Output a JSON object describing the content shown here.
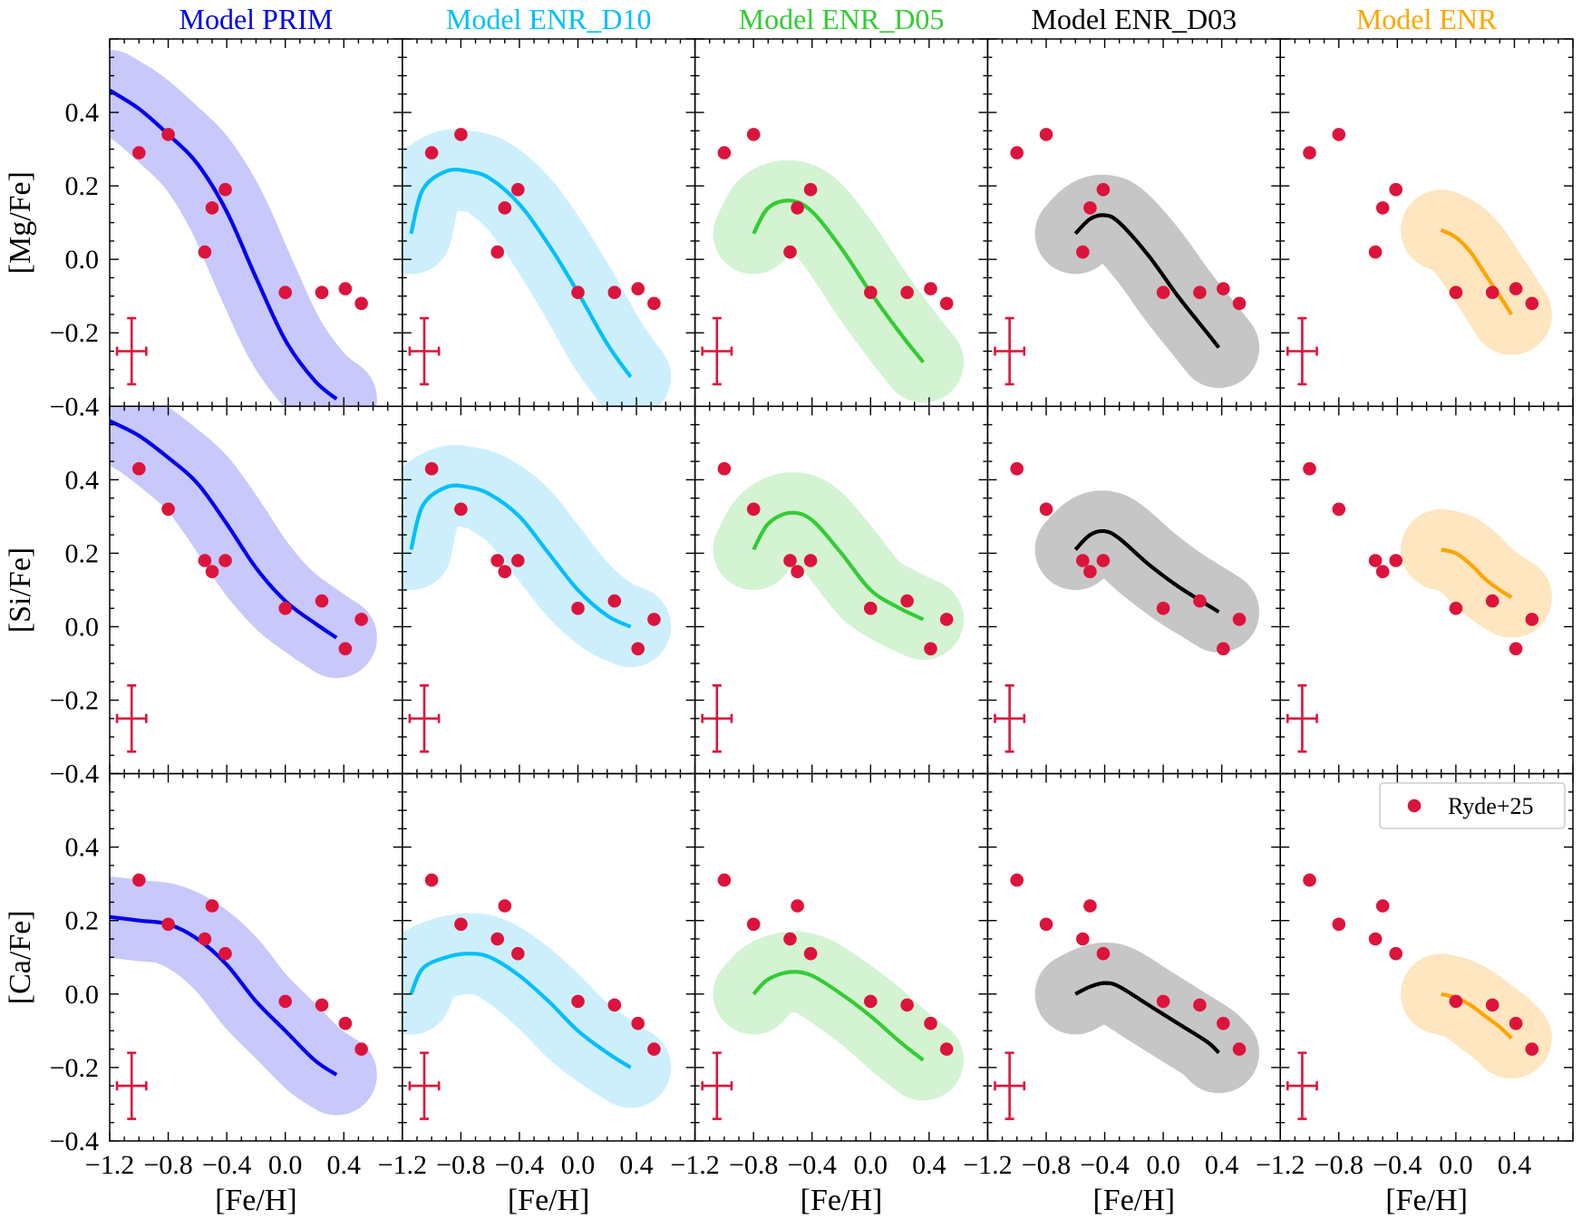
{
  "figure": {
    "x_label": "[Fe/H]",
    "row_labels": [
      "[Mg/Fe]",
      "[Si/Fe]",
      "[Ca/Fe]"
    ],
    "legend_label": "Ryde+25"
  },
  "chart_data": {
    "type": "scatter",
    "layout": "grid 3 rows x 5 columns, shared axes",
    "xlim": [
      -1.2,
      0.8
    ],
    "ylim": [
      -0.4,
      0.6
    ],
    "x_ticks": [
      -1.2,
      -0.8,
      -0.4,
      0.0,
      0.4
    ],
    "x_tick_labels": [
      "−1.2",
      "−0.8",
      "−0.4",
      "0.0",
      "0.4"
    ],
    "y_ticks": [
      -0.4,
      -0.2,
      0.0,
      0.2,
      0.4
    ],
    "y_tick_labels": [
      "−0.4",
      "−0.2",
      "0.0",
      "0.2",
      "0.4"
    ],
    "xlabel": "[Fe/H]",
    "row_ylabels": [
      "[Mg/Fe]",
      "[Si/Fe]",
      "[Ca/Fe]"
    ],
    "models": [
      {
        "name": "Model PRIM",
        "color": "#0000ee",
        "band_color": "#c8c8fa",
        "x_start": -1.2,
        "x_end": 0.35
      },
      {
        "name": "Model ENR_D10",
        "color": "#00bfff",
        "band_color": "#cdeffb",
        "x_start": -1.14,
        "x_end": 0.36
      },
      {
        "name": "Model ENR_D05",
        "color": "#33cc33",
        "band_color": "#d3f3d3",
        "x_start": -0.8,
        "x_end": 0.36
      },
      {
        "name": "Model ENR_D03",
        "color": "#000000",
        "band_color": "#c6c6c6",
        "x_start": -0.6,
        "x_end": 0.38
      },
      {
        "name": "Model ENR",
        "color": "#ffa500",
        "band_color": "#fde6c0",
        "x_start": -0.1,
        "x_end": 0.38
      }
    ],
    "band_halfwidth": 0.11,
    "observations": {
      "label": "Ryde+25",
      "color": "#dc143c",
      "x": [
        -1.0,
        -0.8,
        -0.55,
        -0.5,
        -0.41,
        0.0,
        0.25,
        0.41,
        0.52
      ],
      "rows": [
        {
          "element": "[Mg/Fe]",
          "y": [
            0.29,
            0.34,
            0.02,
            0.14,
            0.19,
            -0.09,
            -0.09,
            -0.08,
            -0.12
          ]
        },
        {
          "element": "[Si/Fe]",
          "y": [
            0.43,
            0.32,
            0.18,
            0.15,
            0.18,
            0.05,
            0.07,
            -0.06,
            0.02
          ]
        },
        {
          "element": "[Ca/Fe]",
          "y": [
            0.31,
            0.19,
            0.15,
            0.24,
            0.11,
            -0.02,
            -0.03,
            -0.08,
            -0.15
          ]
        }
      ],
      "error_bar": {
        "x": -1.05,
        "y": -0.25,
        "dx": 0.1,
        "dy": 0.09
      }
    },
    "tracks": [
      [
        {
          "x": [
            -1.2,
            -1.0,
            -0.8,
            -0.6,
            -0.4,
            -0.2,
            0.0,
            0.2,
            0.35
          ],
          "y": [
            0.46,
            0.41,
            0.34,
            0.26,
            0.13,
            -0.05,
            -0.22,
            -0.33,
            -0.38
          ]
        },
        {
          "x": [
            -1.14,
            -1.06,
            -0.9,
            -0.75,
            -0.6,
            -0.4,
            -0.2,
            0.0,
            0.2,
            0.36
          ],
          "y": [
            0.07,
            0.19,
            0.24,
            0.24,
            0.22,
            0.15,
            0.04,
            -0.09,
            -0.23,
            -0.32
          ]
        },
        {
          "x": [
            -0.8,
            -0.7,
            -0.55,
            -0.4,
            -0.2,
            0.0,
            0.2,
            0.36
          ],
          "y": [
            0.07,
            0.14,
            0.16,
            0.13,
            0.03,
            -0.09,
            -0.2,
            -0.28
          ]
        },
        {
          "x": [
            -0.6,
            -0.5,
            -0.4,
            -0.3,
            -0.1,
            0.1,
            0.3,
            0.38
          ],
          "y": [
            0.07,
            0.11,
            0.12,
            0.1,
            0.01,
            -0.1,
            -0.2,
            -0.24
          ]
        },
        {
          "x": [
            -0.1,
            0.0,
            0.1,
            0.2,
            0.3,
            0.38
          ],
          "y": [
            0.08,
            0.06,
            0.02,
            -0.04,
            -0.1,
            -0.15
          ]
        }
      ],
      [
        {
          "x": [
            -1.2,
            -1.0,
            -0.8,
            -0.6,
            -0.4,
            -0.2,
            0.0,
            0.2,
            0.35
          ],
          "y": [
            0.56,
            0.52,
            0.46,
            0.39,
            0.28,
            0.16,
            0.07,
            0.01,
            -0.03
          ]
        },
        {
          "x": [
            -1.14,
            -1.06,
            -0.9,
            -0.75,
            -0.6,
            -0.4,
            -0.2,
            0.0,
            0.2,
            0.36
          ],
          "y": [
            0.21,
            0.33,
            0.38,
            0.38,
            0.36,
            0.3,
            0.2,
            0.1,
            0.03,
            0.0
          ]
        },
        {
          "x": [
            -0.8,
            -0.7,
            -0.55,
            -0.4,
            -0.2,
            0.0,
            0.2,
            0.36
          ],
          "y": [
            0.21,
            0.28,
            0.31,
            0.29,
            0.2,
            0.1,
            0.05,
            0.02
          ]
        },
        {
          "x": [
            -0.6,
            -0.5,
            -0.4,
            -0.3,
            -0.1,
            0.1,
            0.3,
            0.38
          ],
          "y": [
            0.21,
            0.25,
            0.26,
            0.24,
            0.17,
            0.11,
            0.06,
            0.04
          ]
        },
        {
          "x": [
            -0.1,
            0.0,
            0.1,
            0.2,
            0.3,
            0.38
          ],
          "y": [
            0.21,
            0.2,
            0.17,
            0.13,
            0.1,
            0.08
          ]
        }
      ],
      [
        {
          "x": [
            -1.2,
            -1.0,
            -0.8,
            -0.6,
            -0.4,
            -0.2,
            0.0,
            0.2,
            0.35
          ],
          "y": [
            0.21,
            0.2,
            0.19,
            0.15,
            0.08,
            -0.02,
            -0.1,
            -0.18,
            -0.22
          ]
        },
        {
          "x": [
            -1.14,
            -1.06,
            -0.9,
            -0.75,
            -0.6,
            -0.4,
            -0.2,
            0.0,
            0.2,
            0.36
          ],
          "y": [
            0.0,
            0.07,
            0.1,
            0.11,
            0.1,
            0.05,
            -0.02,
            -0.1,
            -0.16,
            -0.2
          ]
        },
        {
          "x": [
            -0.8,
            -0.7,
            -0.55,
            -0.4,
            -0.2,
            0.0,
            0.2,
            0.36
          ],
          "y": [
            0.0,
            0.04,
            0.06,
            0.05,
            0.0,
            -0.06,
            -0.13,
            -0.18
          ]
        },
        {
          "x": [
            -0.6,
            -0.5,
            -0.4,
            -0.3,
            -0.1,
            0.1,
            0.3,
            0.38
          ],
          "y": [
            0.0,
            0.02,
            0.03,
            0.02,
            -0.03,
            -0.08,
            -0.13,
            -0.16
          ]
        },
        {
          "x": [
            -0.1,
            0.0,
            0.1,
            0.2,
            0.3,
            0.38
          ],
          "y": [
            0.0,
            -0.01,
            -0.03,
            -0.06,
            -0.09,
            -0.12
          ]
        }
      ]
    ]
  }
}
